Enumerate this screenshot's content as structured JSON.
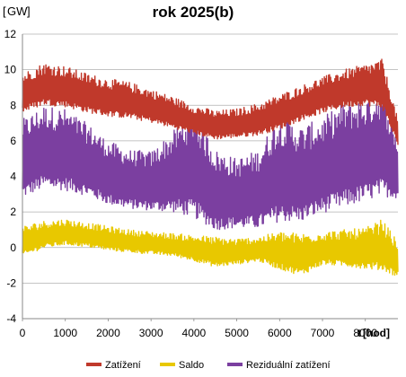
{
  "chart_data": {
    "type": "line",
    "title": "rok 2025(b)",
    "ylabel": "GW",
    "xlabel": "t",
    "xunit": "[hod]",
    "xlim": [
      0,
      8760
    ],
    "ylim": [
      -4,
      12
    ],
    "x_ticks": [
      0,
      1000,
      2000,
      3000,
      4000,
      5000,
      6000,
      7000,
      8000
    ],
    "y_ticks": [
      -4,
      -2,
      0,
      2,
      4,
      6,
      8,
      10,
      12
    ],
    "grid": "horizontal",
    "legend_position": "bottom",
    "series": [
      {
        "name": "Zatížení",
        "color": "#c0392b",
        "x": [
          0,
          500,
          1000,
          1500,
          2000,
          2500,
          3000,
          3500,
          4000,
          4500,
          5000,
          5500,
          6000,
          6500,
          7000,
          7500,
          8000,
          8400,
          8760
        ],
        "min": [
          7.2,
          7.6,
          7.5,
          7.2,
          7.0,
          6.9,
          6.7,
          6.4,
          6.1,
          5.8,
          5.9,
          6.0,
          6.3,
          6.8,
          7.2,
          7.5,
          7.6,
          7.3,
          5.5
        ],
        "max": [
          9.8,
          10.4,
          10.2,
          9.8,
          9.5,
          9.3,
          8.9,
          8.5,
          8.0,
          7.7,
          7.8,
          8.1,
          8.6,
          9.1,
          9.6,
          10.0,
          10.3,
          10.6,
          7.2
        ]
      },
      {
        "name": "Saldo",
        "color": "#e8c800",
        "x": [
          0,
          500,
          1000,
          1500,
          2000,
          2500,
          3000,
          3500,
          4000,
          4500,
          5000,
          5500,
          6000,
          6500,
          7000,
          7500,
          8000,
          8400,
          8760
        ],
        "min": [
          -0.8,
          -0.3,
          -0.1,
          -0.2,
          -0.4,
          -0.5,
          -0.6,
          -0.7,
          -1.0,
          -1.4,
          -1.2,
          -1.0,
          -1.6,
          -2.0,
          -1.3,
          -1.4,
          -1.6,
          -1.8,
          -2.0
        ],
        "max": [
          1.2,
          1.5,
          1.6,
          1.4,
          1.2,
          1.0,
          0.9,
          0.8,
          0.7,
          0.6,
          0.5,
          0.6,
          0.9,
          0.8,
          0.9,
          1.0,
          1.1,
          1.6,
          0.3
        ]
      },
      {
        "name": "Reziduální zatížení",
        "color": "#7b3fa0",
        "x": [
          0,
          500,
          1000,
          1500,
          2000,
          2500,
          3000,
          3500,
          4000,
          4500,
          5000,
          5500,
          6000,
          6500,
          7000,
          7500,
          8000,
          8400,
          8760
        ],
        "min": [
          2.0,
          2.5,
          2.4,
          2.2,
          1.8,
          1.6,
          1.5,
          1.2,
          0.6,
          0.2,
          0.4,
          0.3,
          0.4,
          0.5,
          1.0,
          1.2,
          1.6,
          1.8,
          2.2
        ],
        "max": [
          7.2,
          8.0,
          7.8,
          7.0,
          6.0,
          5.5,
          5.4,
          6.5,
          7.8,
          5.5,
          5.0,
          5.5,
          7.5,
          6.8,
          7.3,
          8.2,
          8.4,
          9.0,
          6.0
        ]
      }
    ]
  }
}
